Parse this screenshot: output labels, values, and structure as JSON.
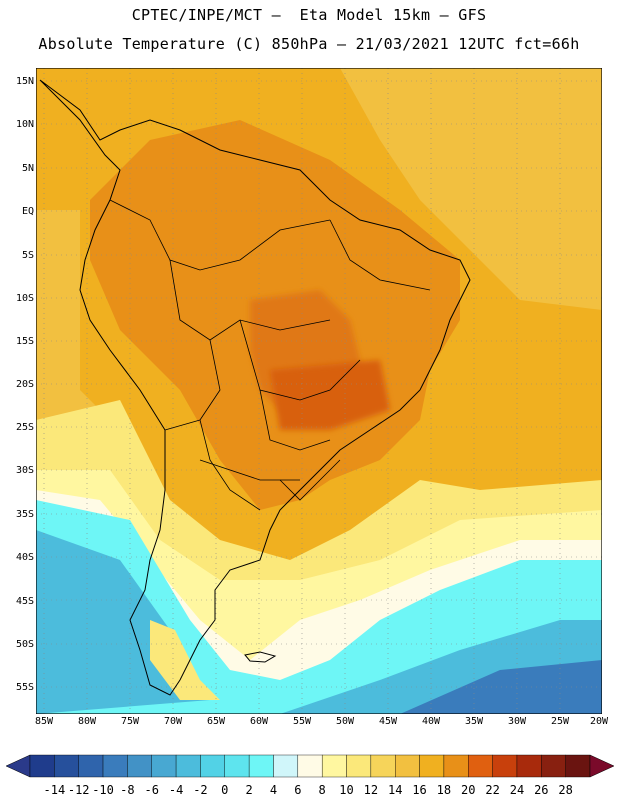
{
  "header": {
    "line1": "CPTEC/INPE/MCT –  Eta Model 15km – GFS",
    "line2": "Absolute Temperature (C) 850hPa – 21/03/2021 12UTC fct=66h"
  },
  "axes": {
    "lat_labels": [
      "15N",
      "10N",
      "5N",
      "EQ",
      "5S",
      "10S",
      "15S",
      "20S",
      "25S",
      "30S",
      "35S",
      "40S",
      "45S",
      "50S",
      "55S"
    ],
    "lon_labels": [
      "85W",
      "80W",
      "75W",
      "70W",
      "65W",
      "60W",
      "55W",
      "50W",
      "45W",
      "40W",
      "35W",
      "30W",
      "25W",
      "20W"
    ]
  },
  "colorbar": {
    "labels": [
      "-14",
      "-12",
      "-10",
      "-8",
      "-6",
      "-4",
      "-2",
      "0",
      "2",
      "4",
      "6",
      "8",
      "10",
      "12",
      "14",
      "16",
      "18",
      "20",
      "22",
      "24",
      "26",
      "28"
    ],
    "colors": [
      "#1f3c8c",
      "#26509c",
      "#2f64ac",
      "#3a7cbc",
      "#4292c6",
      "#48a8d2",
      "#4cbcdc",
      "#52d2e6",
      "#5ee4ee",
      "#6ef6f6",
      "#d0f6fa",
      "#fffbe6",
      "#fff7a0",
      "#fbe87a",
      "#f6d45a",
      "#f2c040",
      "#f0b020",
      "#e89018",
      "#e06010",
      "#c8400c",
      "#a82a0c",
      "#882010",
      "#6a1410"
    ],
    "left_arrow": "#2a3a8a",
    "right_arrow": "#7a0a2a"
  },
  "legend": {
    "region": "South America",
    "field": "850hPa temperature"
  }
}
